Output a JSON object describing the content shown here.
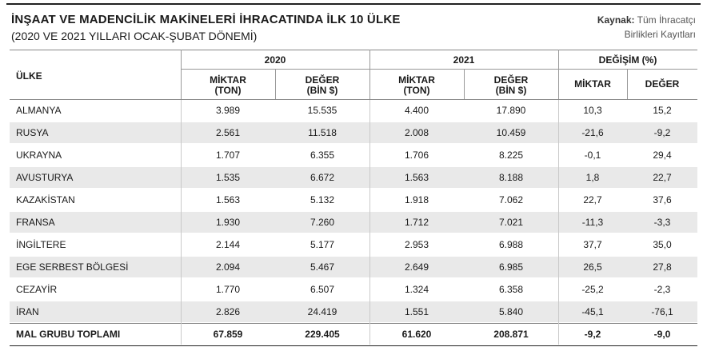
{
  "title": "İNŞAAT VE MADENCİLİK MAKİNELERİ İHRACATINDA İLK 10 ÜLKE",
  "subtitle": "(2020 VE 2021 YILLARI OCAK-ŞUBAT DÖNEMİ)",
  "source": {
    "label": "Kaynak:",
    "line1": "Tüm İhracatçı",
    "line2": "Birlikleri Kayıtları"
  },
  "headers": {
    "country": "ÜLKE",
    "year1": "2020",
    "year2": "2021",
    "change": "DEĞİŞİM (%)",
    "qty_line1": "MİKTAR",
    "qty_line2": "(TON)",
    "val_line1": "DEĞER",
    "val_line2": "(BİN $)",
    "chg_qty": "MİKTAR",
    "chg_val": "DEĞER"
  },
  "rows": [
    {
      "country": "ALMANYA",
      "q2020": "3.989",
      "v2020": "15.535",
      "q2021": "4.400",
      "v2021": "17.890",
      "dq": "10,3",
      "dv": "15,2"
    },
    {
      "country": "RUSYA",
      "q2020": "2.561",
      "v2020": "11.518",
      "q2021": "2.008",
      "v2021": "10.459",
      "dq": "-21,6",
      "dv": "-9,2"
    },
    {
      "country": "UKRAYNA",
      "q2020": "1.707",
      "v2020": "6.355",
      "q2021": "1.706",
      "v2021": "8.225",
      "dq": "-0,1",
      "dv": "29,4"
    },
    {
      "country": "AVUSTURYA",
      "q2020": "1.535",
      "v2020": "6.672",
      "q2021": "1.563",
      "v2021": "8.188",
      "dq": "1,8",
      "dv": "22,7"
    },
    {
      "country": "KAZAKİSTAN",
      "q2020": "1.563",
      "v2020": "5.132",
      "q2021": "1.918",
      "v2021": "7.062",
      "dq": "22,7",
      "dv": "37,6"
    },
    {
      "country": "FRANSA",
      "q2020": "1.930",
      "v2020": "7.260",
      "q2021": "1.712",
      "v2021": "7.021",
      "dq": "-11,3",
      "dv": "-3,3"
    },
    {
      "country": "İNGİLTERE",
      "q2020": "2.144",
      "v2020": "5.177",
      "q2021": "2.953",
      "v2021": "6.988",
      "dq": "37,7",
      "dv": "35,0"
    },
    {
      "country": "EGE SERBEST BÖLGESİ",
      "q2020": "2.094",
      "v2020": "5.467",
      "q2021": "2.649",
      "v2021": "6.985",
      "dq": "26,5",
      "dv": "27,8"
    },
    {
      "country": "CEZAYİR",
      "q2020": "1.770",
      "v2020": "6.507",
      "q2021": "1.324",
      "v2021": "6.358",
      "dq": "-25,2",
      "dv": "-2,3"
    },
    {
      "country": "İRAN",
      "q2020": "2.826",
      "v2020": "24.419",
      "q2021": "1.551",
      "v2021": "5.840",
      "dq": "-45,1",
      "dv": "-76,1"
    }
  ],
  "total": {
    "country": "MAL GRUBU TOPLAMI",
    "q2020": "67.859",
    "v2020": "229.405",
    "q2021": "61.620",
    "v2021": "208.871",
    "dq": "-9,2",
    "dv": "-9,0"
  }
}
